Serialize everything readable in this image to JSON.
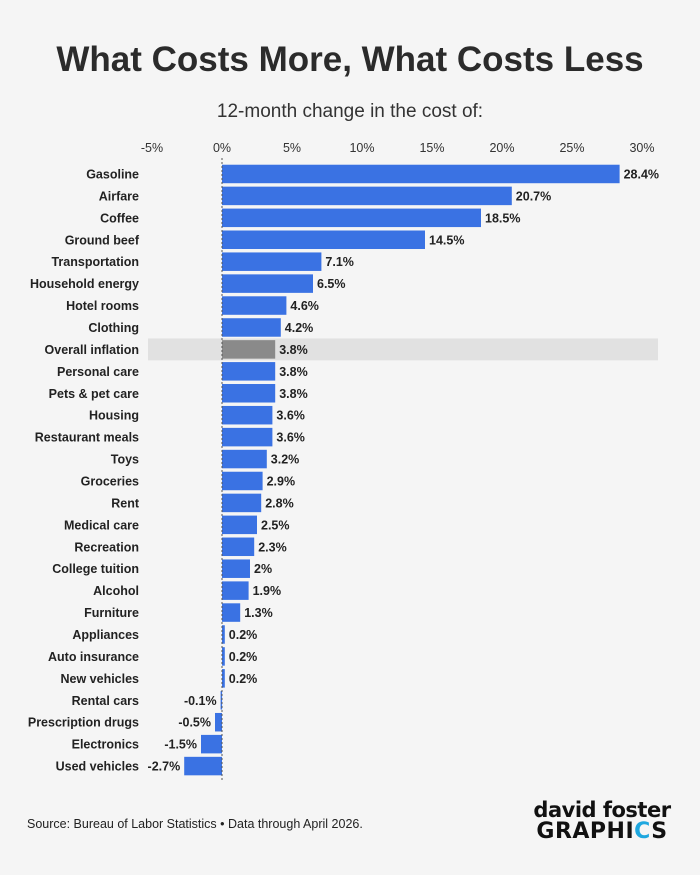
{
  "header": {
    "title": "What Costs More, What Costs Less",
    "subtitle": "12-month change in the cost of:"
  },
  "footer": {
    "source": "Source: Bureau of Labor Statistics • Data through April 2026.",
    "logo_line1": "david foster",
    "logo_line2_main": "GRAPHI",
    "logo_line2_accent": "C",
    "logo_line2_end": "S"
  },
  "colors": {
    "bar": "#3a72e3",
    "highlight_bar": "#8a8a8a",
    "highlight_band": "#e1e1e1",
    "text": "#222222"
  },
  "chart_data": {
    "type": "bar",
    "orientation": "horizontal",
    "title": "What Costs More, What Costs Less",
    "subtitle": "12-month change in the cost of:",
    "xlim": [
      -5,
      31
    ],
    "ticks": [
      -5,
      0,
      5,
      10,
      15,
      20,
      25,
      30
    ],
    "tick_labels": [
      "-5%",
      "0%",
      "5%",
      "10%",
      "15%",
      "20%",
      "25%",
      "30%"
    ],
    "highlight": "Overall inflation",
    "categories": [
      "Gasoline",
      "Airfare",
      "Coffee",
      "Ground beef",
      "Transportation",
      "Household energy",
      "Hotel rooms",
      "Clothing",
      "Overall inflation",
      "Personal care",
      "Pets & pet care",
      "Housing",
      "Restaurant meals",
      "Toys",
      "Groceries",
      "Rent",
      "Medical care",
      "Recreation",
      "College tuition",
      "Alcohol",
      "Furniture",
      "Appliances",
      "Auto insurance",
      "New vehicles",
      "Rental cars",
      "Prescription drugs",
      "Electronics",
      "Used vehicles"
    ],
    "values": [
      28.4,
      20.7,
      18.5,
      14.5,
      7.1,
      6.5,
      4.6,
      4.2,
      3.8,
      3.8,
      3.8,
      3.6,
      3.6,
      3.2,
      2.9,
      2.8,
      2.5,
      2.3,
      2,
      1.9,
      1.3,
      0.2,
      0.2,
      0.2,
      -0.1,
      -0.5,
      -1.5,
      -2.7
    ],
    "value_labels": [
      "28.4%",
      "20.7%",
      "18.5%",
      "14.5%",
      "7.1%",
      "6.5%",
      "4.6%",
      "4.2%",
      "3.8%",
      "3.8%",
      "3.8%",
      "3.6%",
      "3.6%",
      "3.2%",
      "2.9%",
      "2.8%",
      "2.5%",
      "2.3%",
      "2%",
      "1.9%",
      "1.3%",
      "0.2%",
      "0.2%",
      "0.2%",
      "-0.1%",
      "-0.5%",
      "-1.5%",
      "-2.7%"
    ]
  }
}
